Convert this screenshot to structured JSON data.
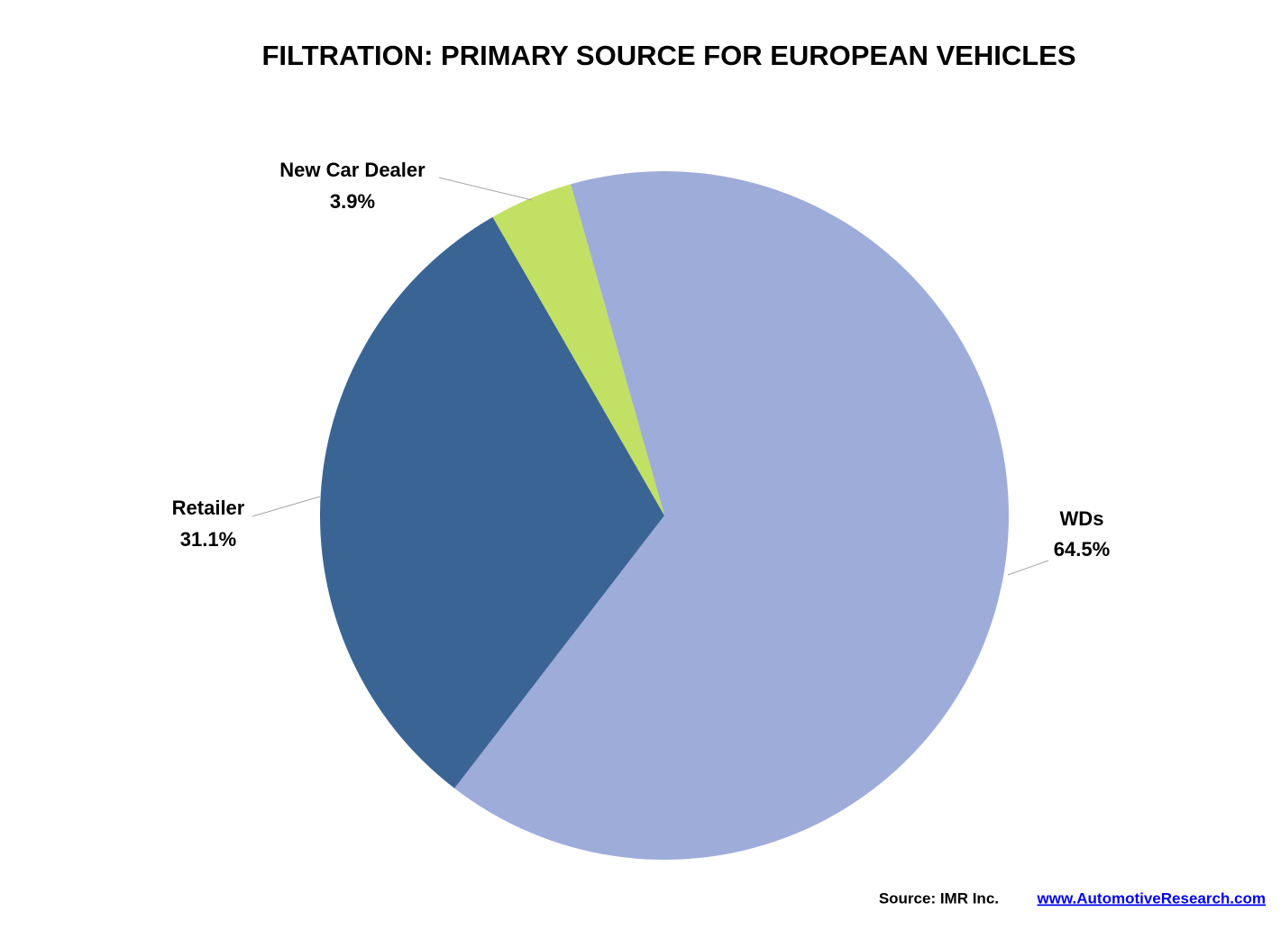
{
  "chart_data": {
    "type": "pie",
    "title": "FILTRATION: PRIMARY SOURCE FOR EUROPEAN VEHICLES",
    "categories": [
      "WDs",
      "Retailer",
      "New Car Dealer"
    ],
    "values": [
      64.5,
      31.1,
      3.9
    ],
    "value_labels": [
      "64.5%",
      "31.1%",
      "3.9%"
    ],
    "colors": [
      "#9eacda",
      "#3a6494",
      "#c2e064"
    ],
    "source": "Source: IMR Inc.",
    "source_link": "www.AutomotiveResearch.com"
  }
}
